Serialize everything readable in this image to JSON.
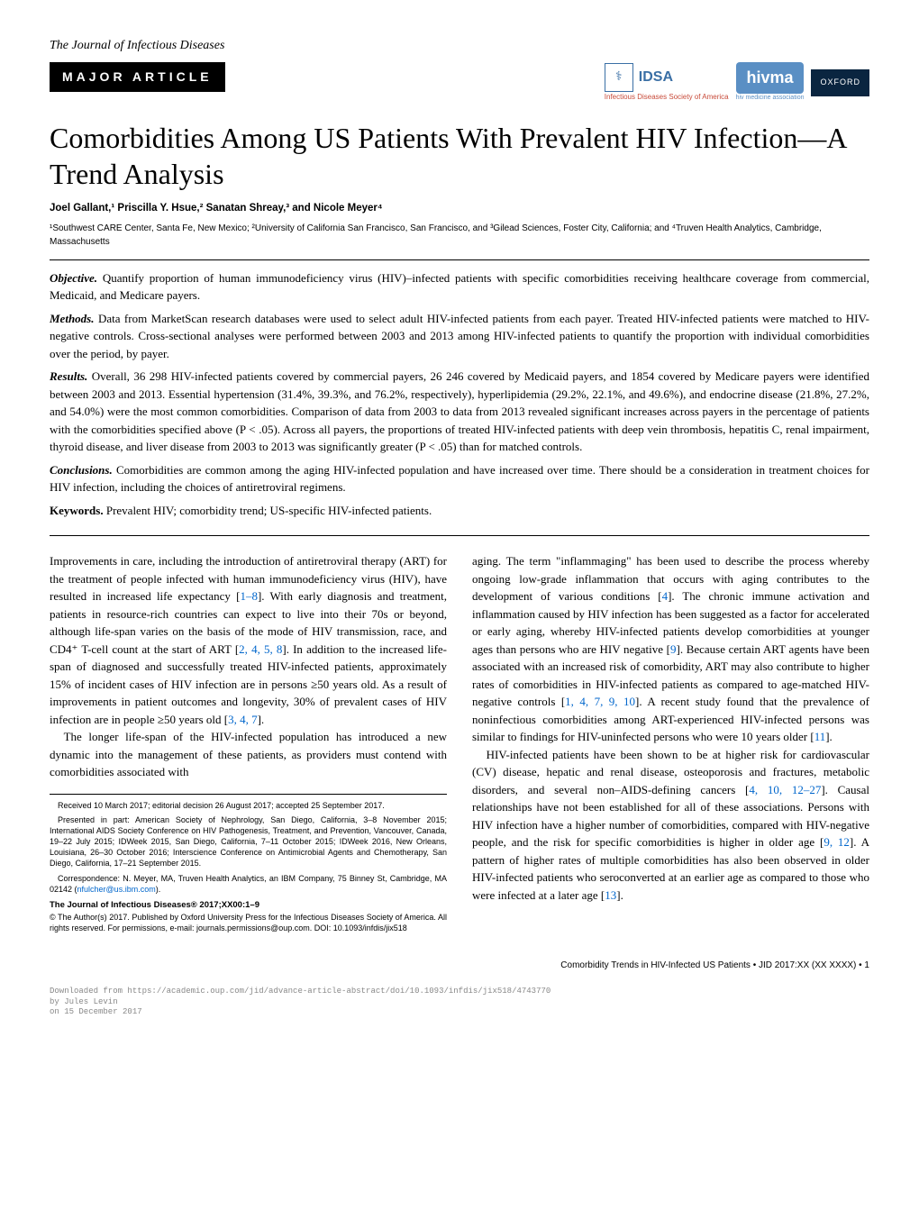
{
  "journal": {
    "name": "The Journal of Infectious Diseases",
    "badge": "MAJOR ARTICLE"
  },
  "logos": {
    "idsa": {
      "abbr": "IDSA",
      "full": "Infectious Diseases Society of America"
    },
    "hivma": {
      "abbr": "hivma",
      "full": "hiv medicine association"
    },
    "oxford": "OXFORD"
  },
  "title": "Comorbidities Among US Patients With Prevalent HIV Infection—A Trend Analysis",
  "authors": "Joel Gallant,¹ Priscilla Y. Hsue,² Sanatan Shreay,³ and Nicole Meyer⁴",
  "affiliations": "¹Southwest CARE Center, Santa Fe, New Mexico; ²University of California San Francisco, San Francisco, and ³Gilead Sciences, Foster City, California; and ⁴Truven Health Analytics, Cambridge, Massachusetts",
  "abstract": {
    "objective": {
      "label": "Objective.",
      "text": "Quantify proportion of human immunodeficiency virus (HIV)–infected patients with specific comorbidities receiving healthcare coverage from commercial, Medicaid, and Medicare payers."
    },
    "methods": {
      "label": "Methods.",
      "text": "Data from MarketScan research databases were used to select adult HIV-infected patients from each payer. Treated HIV-infected patients were matched to HIV-negative controls. Cross-sectional analyses were performed between 2003 and 2013 among HIV-infected patients to quantify the proportion with individual comorbidities over the period, by payer."
    },
    "results": {
      "label": "Results.",
      "text": "Overall, 36 298 HIV-infected patients covered by commercial payers, 26 246 covered by Medicaid payers, and 1854 covered by Medicare payers were identified between 2003 and 2013. Essential hypertension (31.4%, 39.3%, and 76.2%, respectively), hyperlipidemia (29.2%, 22.1%, and 49.6%), and endocrine disease (21.8%, 27.2%, and 54.0%) were the most common comorbidities. Comparison of data from 2003 to data from 2013 revealed significant increases across payers in the percentage of patients with the comorbidities specified above (P < .05). Across all payers, the proportions of treated HIV-infected patients with deep vein thrombosis, hepatitis C, renal impairment, thyroid disease, and liver disease from 2003 to 2013 was significantly greater (P < .05) than for matched controls."
    },
    "conclusions": {
      "label": "Conclusions.",
      "text": "Comorbidities are common among the aging HIV-infected population and have increased over time. There should be a consideration in treatment choices for HIV infection, including the choices of antiretroviral regimens."
    },
    "keywords": {
      "label": "Keywords.",
      "text": "Prevalent HIV; comorbidity trend; US-specific HIV-infected patients."
    }
  },
  "body": {
    "left": {
      "p1a": "Improvements in care, including the introduction of antiretroviral therapy (ART) for the treatment of people infected with human immunodeficiency virus (HIV), have resulted in increased life expectancy [",
      "ref1": "1–8",
      "p1b": "]. With early diagnosis and treatment, patients in resource-rich countries can expect to live into their 70s or beyond, although life-span varies on the basis of the mode of HIV transmission, race, and CD4⁺ T-cell count at the start of ART [",
      "ref2": "2, 4, 5, 8",
      "p1c": "]. In addition to the increased life-span of diagnosed and successfully treated HIV-infected patients, approximately 15% of incident cases of HIV infection are in persons ≥50 years old. As a result of improvements in patient outcomes and longevity, 30% of prevalent cases of HIV infection are in people ≥50 years old [",
      "ref3": "3, 4, 7",
      "p1d": "].",
      "p2": "The longer life-span of the HIV-infected population has introduced a new dynamic into the management of these patients, as providers must contend with comorbidities associated with"
    },
    "right": {
      "p1a": "aging. The term \"inflammaging\" has been used to describe the process whereby ongoing low-grade inflammation that occurs with aging contributes to the development of various conditions [",
      "ref1": "4",
      "p1b": "]. The chronic immune activation and inflammation caused by HIV infection has been suggested as a factor for accelerated or early aging, whereby HIV-infected patients develop comorbidities at younger ages than persons who are HIV negative [",
      "ref2": "9",
      "p1c": "]. Because certain ART agents have been associated with an increased risk of comorbidity, ART may also contribute to higher rates of comorbidities in HIV-infected patients as compared to age-matched HIV-negative controls [",
      "ref3": "1, 4, 7, 9, 10",
      "p1d": "]. A recent study found that the prevalence of noninfectious comorbidities among ART-experienced HIV-infected persons was similar to findings for HIV-uninfected persons who were 10 years older [",
      "ref4": "11",
      "p1e": "].",
      "p2a": "HIV-infected patients have been shown to be at higher risk for cardiovascular (CV) disease, hepatic and renal disease, osteoporosis and fractures, metabolic disorders, and several non–AIDS-defining cancers [",
      "ref5": "4, 10, 12–27",
      "p2b": "]. Causal relationships have not been established for all of these associations. Persons with HIV infection have a higher number of comorbidities, compared with HIV-negative people, and the risk for specific comorbidities is higher in older age [",
      "ref6": "9, 12",
      "p2c": "]. A pattern of higher rates of multiple comorbidities has also been observed in older HIV-infected patients who seroconverted at an earlier age as compared to those who were infected at a later age [",
      "ref7": "13",
      "p2d": "]."
    }
  },
  "footnotes": {
    "received": "Received 10 March 2017; editorial decision 26 August 2017; accepted 25 September 2017.",
    "presented": "Presented in part: American Society of Nephrology, San Diego, California, 3–8 November 2015; International AIDS Society Conference on HIV Pathogenesis, Treatment, and Prevention, Vancouver, Canada, 19–22 July 2015; IDWeek 2015, San Diego, California, 7–11 October 2015; IDWeek 2016, New Orleans, Louisiana, 26–30 October 2016; Interscience Conference on Antimicrobial Agents and Chemotherapy, San Diego, California, 17–21 September 2015.",
    "correspondence_a": "Correspondence: N. Meyer, MA, Truven Health Analytics, an IBM Company, 75 Binney St, Cambridge, MA 02142 (",
    "email": "nfulcher@us.ibm.com",
    "correspondence_b": ").",
    "journal_info": "The Journal of Infectious Diseases®    2017;XX00:1–9",
    "copyright": "© The Author(s) 2017. Published by Oxford University Press for the Infectious Diseases Society of America. All rights reserved. For permissions, e-mail: journals.permissions@oup.com. DOI: 10.1093/infdis/jix518"
  },
  "page_footer": "Comorbidity Trends in HIV-Infected US Patients • JID 2017:XX (XX XXXX) • 1",
  "download": {
    "l1": "Downloaded from https://academic.oup.com/jid/advance-article-abstract/doi/10.1093/infdis/jix518/4743770",
    "l2": "by Jules Levin",
    "l3": "on 15 December 2017"
  }
}
